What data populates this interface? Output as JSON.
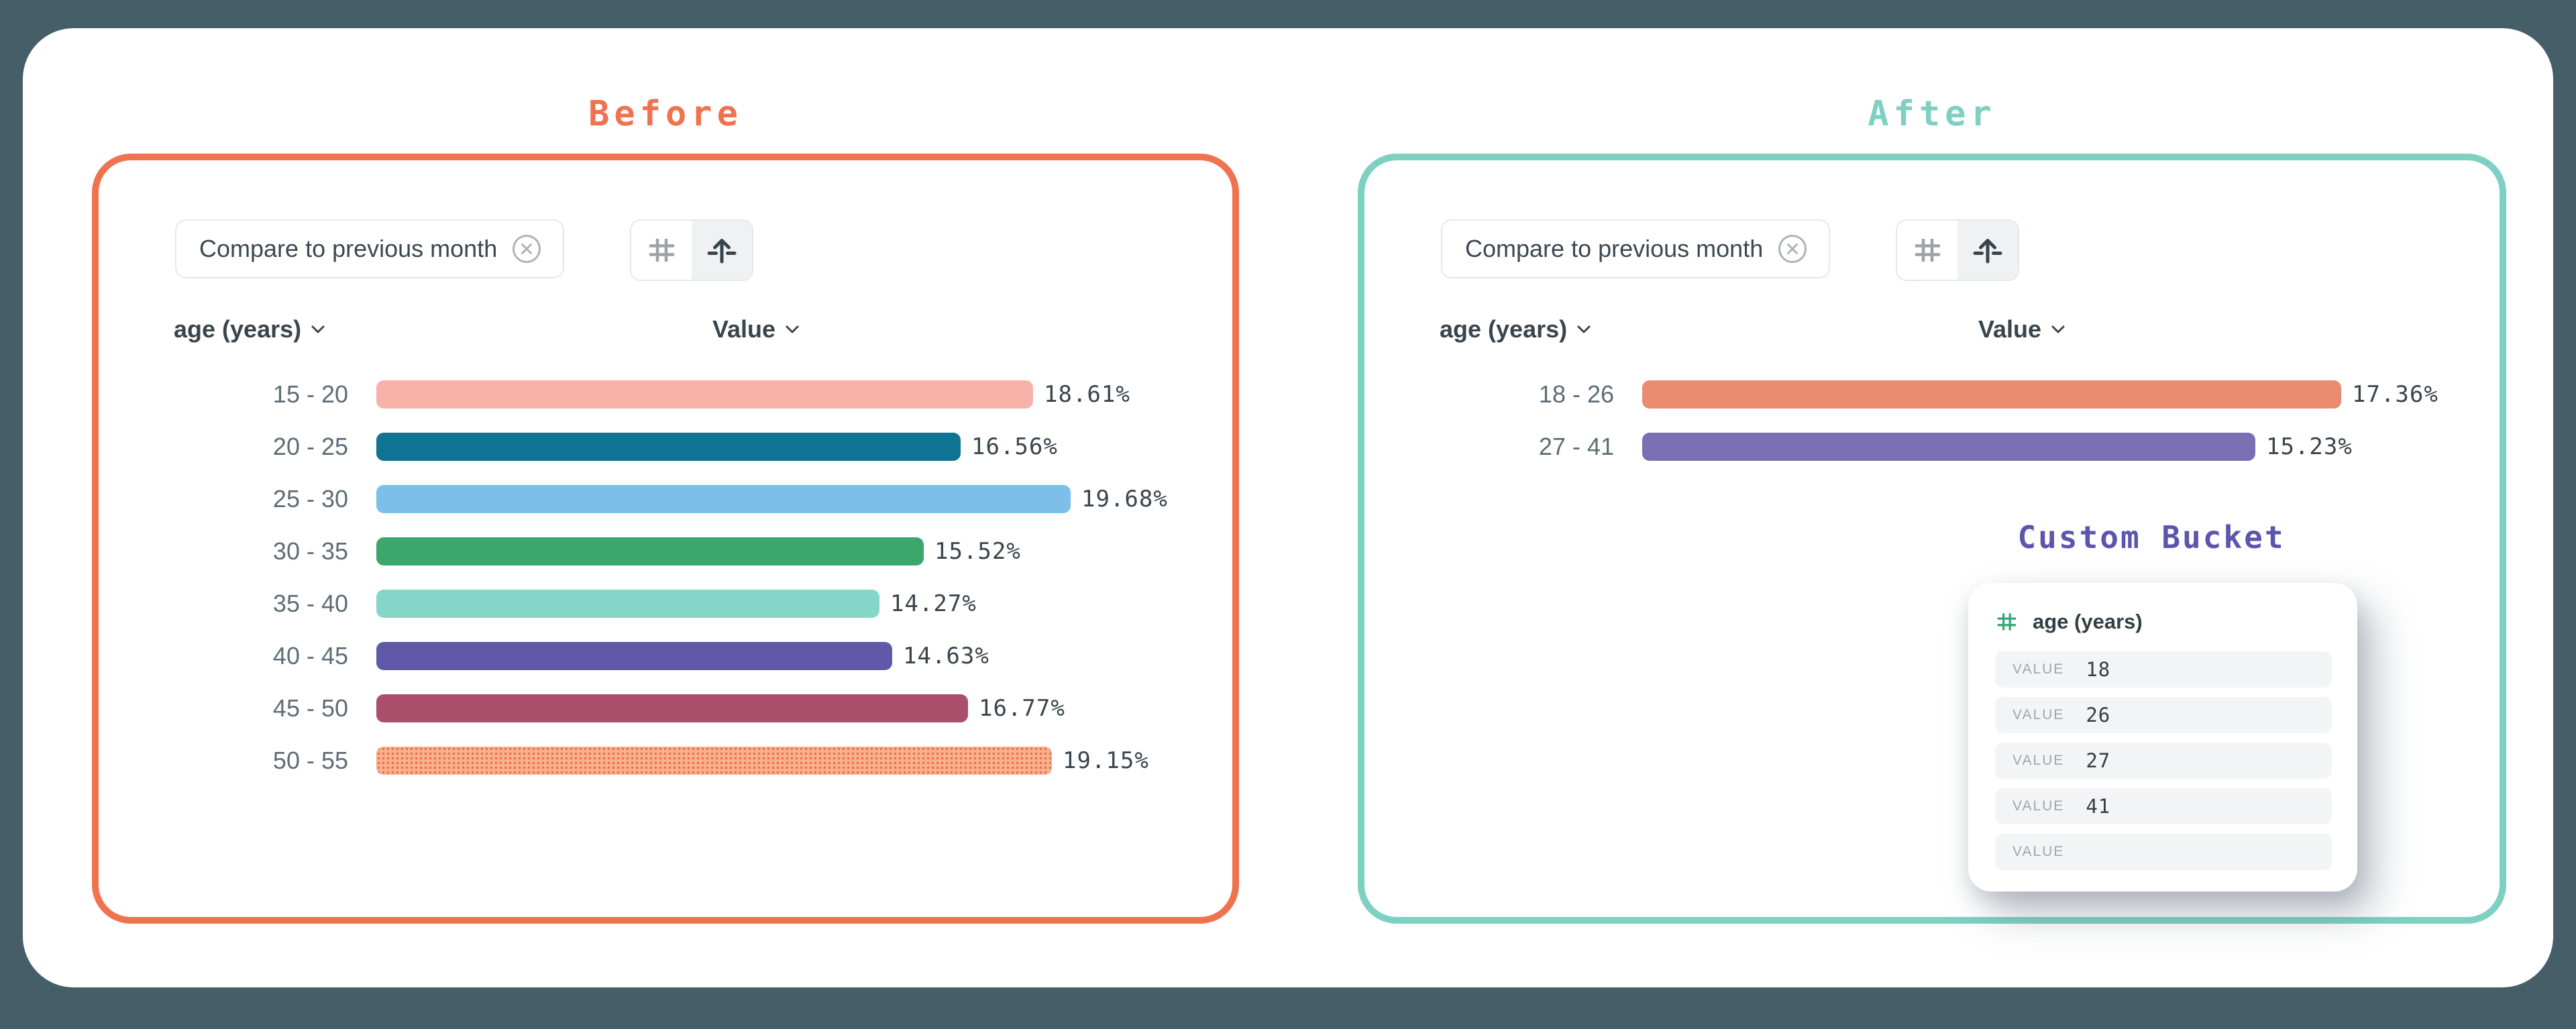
{
  "background_color": "#465E68",
  "panels": {
    "before": {
      "title": "Before",
      "accent_color": "#F0724F",
      "chip": {
        "label": "Compare to previous month"
      },
      "toolbar": {
        "left_icon": "hash-icon",
        "right_icon": "arrow-up-icon",
        "selected": "arrow-up-icon"
      },
      "columns": {
        "dimension": "age (years)",
        "measure": "Value"
      },
      "chart": {
        "type": "bar",
        "rows": [
          {
            "label": "15 - 20",
            "value": 18.61,
            "display": "18.61%",
            "color": "#F7B3AA"
          },
          {
            "label": "20 - 25",
            "value": 16.56,
            "display": "16.56%",
            "color": "#0F7493"
          },
          {
            "label": "25 - 30",
            "value": 19.68,
            "display": "19.68%",
            "color": "#7CC0EA"
          },
          {
            "label": "30 - 35",
            "value": 15.52,
            "display": "15.52%",
            "color": "#3BA76C"
          },
          {
            "label": "35 - 40",
            "value": 14.27,
            "display": "14.27%",
            "color": "#85D6C8"
          },
          {
            "label": "40 - 45",
            "value": 14.63,
            "display": "14.63%",
            "color": "#6058A9"
          },
          {
            "label": "45 - 50",
            "value": 16.77,
            "display": "16.77%",
            "color": "#AB4E6C"
          },
          {
            "label": "50 - 55",
            "value": 19.15,
            "display": "19.15%",
            "color": "#F8B28B",
            "pattern": "dots",
            "pattern_dot_color": "#EE6B52"
          }
        ]
      }
    },
    "after": {
      "title": "After",
      "accent_color": "#7DD0C2",
      "chip": {
        "label": "Compare to previous month"
      },
      "toolbar": {
        "left_icon": "hash-icon",
        "right_icon": "arrow-up-icon",
        "selected": "arrow-up-icon"
      },
      "columns": {
        "dimension": "age (years)",
        "measure": "Value"
      },
      "chart": {
        "type": "bar",
        "rows": [
          {
            "label": "18 - 26",
            "value": 17.36,
            "display": "17.36%",
            "color": "#E98B6F"
          },
          {
            "label": "27 - 41",
            "value": 15.23,
            "display": "15.23%",
            "color": "#7A6FB3"
          }
        ]
      },
      "bucket": {
        "title": "Custom Bucket",
        "title_color": "#5C55AD",
        "field_icon_color": "#38A878",
        "field": "age (years)",
        "row_label": "VALUE",
        "values": [
          "18",
          "26",
          "27",
          "41",
          ""
        ]
      }
    }
  },
  "chart_data": [
    {
      "type": "bar",
      "title": "Before",
      "categories": [
        "15 - 20",
        "20 - 25",
        "25 - 30",
        "30 - 35",
        "35 - 40",
        "40 - 45",
        "45 - 50",
        "50 - 55"
      ],
      "values": [
        18.61,
        16.56,
        19.68,
        15.52,
        14.27,
        14.63,
        16.77,
        19.15
      ],
      "xlabel": "Value",
      "ylabel": "age (years)"
    },
    {
      "type": "bar",
      "title": "After",
      "categories": [
        "18 - 26",
        "27 - 41"
      ],
      "values": [
        17.36,
        15.23
      ],
      "xlabel": "Value",
      "ylabel": "age (years)"
    }
  ]
}
